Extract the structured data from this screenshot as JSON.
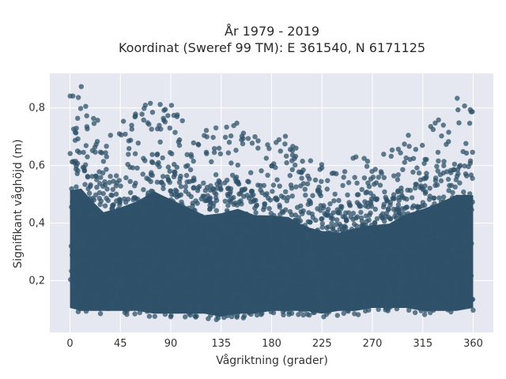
{
  "chart_data": {
    "type": "scatter",
    "title": "År 1979 - 2019",
    "subtitle": "Koordinat (Sweref 99 TM): E 361540, N 6171125",
    "xlabel": "Vågriktning (grader)",
    "ylabel": "Signifikant våghöjd (m)",
    "xlim": [
      -18,
      378
    ],
    "ylim": [
      0.02,
      0.92
    ],
    "x_ticks": [
      0,
      45,
      90,
      135,
      180,
      225,
      270,
      315,
      360
    ],
    "y_ticks": [
      0.2,
      0.4,
      0.6,
      0.8
    ],
    "y_tick_labels": [
      "0,2",
      "0,4",
      "0,6",
      "0,8"
    ],
    "grid": true,
    "legend": "none",
    "colors": {
      "marker": "#2f5169",
      "plot_bg": "#e5e8f0",
      "grid": "#ffffff"
    },
    "marker_opacity": 0.75,
    "envelope": {
      "x": [
        0,
        10,
        20,
        30,
        45,
        60,
        75,
        90,
        105,
        120,
        135,
        150,
        165,
        180,
        195,
        210,
        225,
        240,
        255,
        270,
        285,
        300,
        315,
        330,
        345,
        360
      ],
      "upper": [
        0.86,
        0.88,
        0.8,
        0.73,
        0.76,
        0.8,
        0.87,
        0.82,
        0.77,
        0.72,
        0.74,
        0.76,
        0.72,
        0.71,
        0.7,
        0.64,
        0.62,
        0.6,
        0.63,
        0.64,
        0.65,
        0.71,
        0.75,
        0.79,
        0.84,
        0.83
      ],
      "lower": [
        0.09,
        0.08,
        0.08,
        0.08,
        0.08,
        0.08,
        0.07,
        0.07,
        0.07,
        0.07,
        0.06,
        0.07,
        0.07,
        0.08,
        0.08,
        0.08,
        0.07,
        0.08,
        0.08,
        0.09,
        0.09,
        0.09,
        0.08,
        0.08,
        0.08,
        0.09
      ]
    }
  }
}
